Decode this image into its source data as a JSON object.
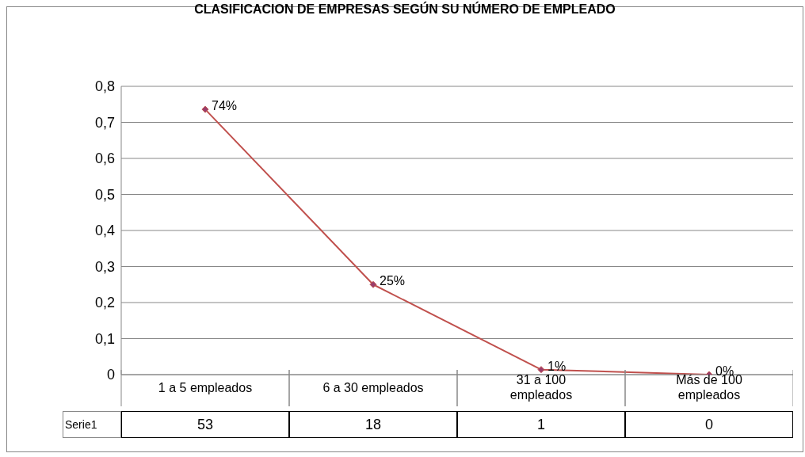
{
  "chart_data": {
    "type": "line",
    "title": "CLASIFICACION DE EMPRESAS SEGÚN SU NÚMERO DE EMPLEADO",
    "categories": [
      "1 a 5 empleados",
      "6 a 30 empleados",
      "31 a 100 empleados",
      "Más de 100 empleados"
    ],
    "series": [
      {
        "name": "Serie1",
        "color": "#c0504d",
        "values": [
          0.736,
          0.25,
          0.014,
          0
        ],
        "value_labels": [
          "74%",
          "25%",
          "1%",
          "0%"
        ]
      }
    ],
    "annotations": [
      "53",
      "18",
      "1",
      "0"
    ],
    "ylim": [
      0,
      0.8
    ],
    "yticks": [
      {
        "value": 0,
        "label": "0"
      },
      {
        "value": 0.1,
        "label": "0,1"
      },
      {
        "value": 0.2,
        "label": "0,2"
      },
      {
        "value": 0.3,
        "label": "0,3"
      },
      {
        "value": 0.4,
        "label": "0,4"
      },
      {
        "value": 0.5,
        "label": "0,5"
      },
      {
        "value": 0.6,
        "label": "0,6"
      },
      {
        "value": 0.7,
        "label": "0,7"
      },
      {
        "value": 0.8,
        "label": "0,8"
      }
    ],
    "grid": "y",
    "marker": "diamond",
    "line_style": "solid"
  }
}
